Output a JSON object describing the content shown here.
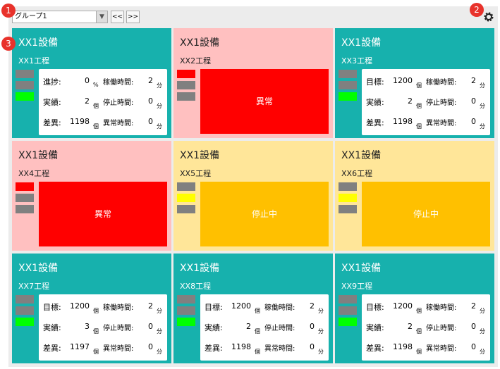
{
  "toolbar": {
    "group_select": "グループ1",
    "prev": "<<",
    "next": ">>"
  },
  "badges": [
    "1",
    "2",
    "3"
  ],
  "panels": [
    {
      "equipment": "XX1設備",
      "process": "XX1工程",
      "color": "#17b1ad",
      "lights": [
        "#808080",
        "#808080",
        "#00ff00"
      ],
      "rows": [
        [
          "進捗:",
          0,
          "%",
          "稼働時間:",
          2,
          "分"
        ],
        [
          "実績:",
          2,
          "個",
          "停止時間:",
          0,
          "分"
        ],
        [
          "差異:",
          1198,
          "個",
          "異常時間:",
          0,
          "分"
        ]
      ]
    },
    {
      "equipment": "XX1設備",
      "process": "XX2工程",
      "color": "#ffc0c0",
      "lights": [
        "#ff0000",
        "#808080",
        "#808080"
      ],
      "alert": {
        "text": "異常",
        "color": "#ff0000"
      }
    },
    {
      "equipment": "XX1設備",
      "process": "XX3工程",
      "color": "#17b1ad",
      "lights": [
        "#808080",
        "#808080",
        "#00ff00"
      ],
      "rows": [
        [
          "目標:",
          1200,
          "個",
          "稼働時間:",
          2,
          "分"
        ],
        [
          "実績:",
          2,
          "個",
          "停止時間:",
          0,
          "分"
        ],
        [
          "差異:",
          1198,
          "個",
          "異常時間:",
          0,
          "分"
        ]
      ]
    },
    {
      "equipment": "XX1設備",
      "process": "XX4工程",
      "color": "#ffc0c0",
      "lights": [
        "#ff0000",
        "#808080",
        "#808080"
      ],
      "alert": {
        "text": "異常",
        "color": "#ff0000"
      }
    },
    {
      "equipment": "XX1設備",
      "process": "XX5工程",
      "color": "#ffe699",
      "lights": [
        "#808080",
        "#ffff00",
        "#808080"
      ],
      "alert": {
        "text": "停止中",
        "color": "#ffc000"
      }
    },
    {
      "equipment": "XX1設備",
      "process": "XX6工程",
      "color": "#ffe699",
      "lights": [
        "#808080",
        "#ffff00",
        "#808080"
      ],
      "alert": {
        "text": "停止中",
        "color": "#ffc000"
      }
    },
    {
      "equipment": "XX1設備",
      "process": "XX7工程",
      "color": "#17b1ad",
      "lights": [
        "#808080",
        "#808080",
        "#00ff00"
      ],
      "rows": [
        [
          "目標:",
          1200,
          "個",
          "稼働時間:",
          2,
          "分"
        ],
        [
          "実績:",
          3,
          "個",
          "停止時間:",
          0,
          "分"
        ],
        [
          "差異:",
          1197,
          "個",
          "異常時間:",
          0,
          "分"
        ]
      ]
    },
    {
      "equipment": "XX1設備",
      "process": "XX8工程",
      "color": "#17b1ad",
      "lights": [
        "#808080",
        "#808080",
        "#00ff00"
      ],
      "rows": [
        [
          "目標:",
          1200,
          "個",
          "稼働時間:",
          2,
          "分"
        ],
        [
          "実績:",
          2,
          "個",
          "停止時間:",
          0,
          "分"
        ],
        [
          "差異:",
          1198,
          "個",
          "異常時間:",
          0,
          "分"
        ]
      ]
    },
    {
      "equipment": "XX1設備",
      "process": "XX9工程",
      "color": "#17b1ad",
      "lights": [
        "#808080",
        "#808080",
        "#00ff00"
      ],
      "rows": [
        [
          "目標:",
          1200,
          "個",
          "稼働時間:",
          2,
          "分"
        ],
        [
          "実績:",
          2,
          "個",
          "停止時間:",
          0,
          "分"
        ],
        [
          "差異:",
          1198,
          "個",
          "異常時間:",
          0,
          "分"
        ]
      ]
    }
  ]
}
